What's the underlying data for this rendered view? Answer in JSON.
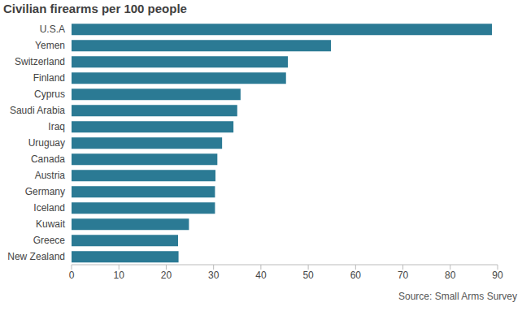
{
  "chart_data": {
    "type": "bar",
    "title": "Civilian firearms per 100 people",
    "source": "Source: Small Arms Survey",
    "orientation": "horizontal",
    "categories": [
      "U.S.A",
      "Yemen",
      "Switzerland",
      "Finland",
      "Cyprus",
      "Saudi Arabia",
      "Iraq",
      "Uruguay",
      "Canada",
      "Austria",
      "Germany",
      "Iceland",
      "Kuwait",
      "Greece",
      "New Zealand"
    ],
    "values": [
      88.8,
      54.8,
      45.7,
      45.3,
      35.7,
      35,
      34.2,
      31.8,
      30.8,
      30.4,
      30.3,
      30.3,
      24.8,
      22.5,
      22.6
    ],
    "color": "#2b7a94",
    "xlim": [
      0,
      90
    ],
    "xticks": [
      0,
      10,
      20,
      30,
      40,
      50,
      60,
      70,
      80,
      90
    ],
    "grid": false
  }
}
